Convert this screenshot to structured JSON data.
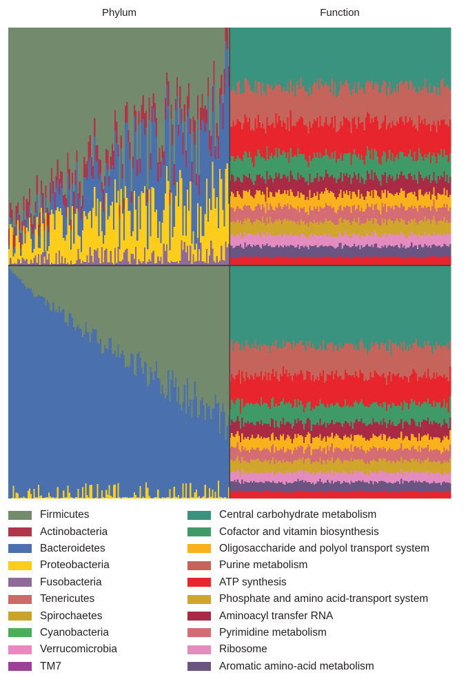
{
  "headers": {
    "phylum": "Phylum",
    "function": "Function"
  },
  "colors": {
    "Firmicutes": "#738a6c",
    "Actinobacteria": "#b0344a",
    "Bacteroidetes": "#4a70ad",
    "Proteobacteria": "#fccd1a",
    "Fusobacteria": "#8e6c9a",
    "Tenericutes": "#cc6a6a",
    "Spirochaetes": "#c9a42a",
    "Cyanobacteria": "#4cae5a",
    "Verrucomicrobia": "#ea88bf",
    "TM7": "#9e3f98",
    "Central carbohydrate metabolism": "#3a937f",
    "Cofactor and vitamin biosynthesis": "#3f9a67",
    "Oligosaccharide and polyol transport system": "#f9b21b",
    "Purine metabolism": "#c4645a",
    "ATP synthesis": "#e8242c",
    "Phosphate and amino acid-transport system": "#d0a52c",
    "Aminoacyl transfer RNA": "#a82a45",
    "Pyrimidine metabolism": "#d46d73",
    "Ribosome": "#e48cc0",
    "Aromatic amino-acid metabolism": "#6a5481"
  },
  "legend_phylum": [
    "Firmicutes",
    "Actinobacteria",
    "Bacteroidetes",
    "Proteobacteria",
    "Fusobacteria",
    "Tenericutes",
    "Spirochaetes",
    "Cyanobacteria",
    "Verrucomicrobia",
    "TM7"
  ],
  "legend_function": [
    "Central carbohydrate metabolism",
    "Cofactor and vitamin biosynthesis",
    "Oligosaccharide and polyol transport system",
    "Purine metabolism",
    "ATP synthesis",
    "Phosphate and amino acid-transport system",
    "Aminoacyl transfer RNA",
    "Pyrimidine metabolism",
    "Ribosome",
    "Aromatic amino-acid metabolism"
  ],
  "chart_data": [
    {
      "type": "area",
      "panel": "Phylum, upper group",
      "stacking": "100% stacked, bottom to top",
      "samples": 150,
      "sort": "ascending by Firmicutes deficit",
      "series": [
        {
          "name": "Fusobacteria",
          "start": 0.03,
          "end": 0.08
        },
        {
          "name": "Proteobacteria",
          "start": 0.1,
          "end": 0.25
        },
        {
          "name": "Bacteroidetes",
          "start": 0.02,
          "end": 0.4
        },
        {
          "name": "Actinobacteria",
          "start": 0.06,
          "end": 0.08
        },
        {
          "name": "Firmicutes",
          "start": 0.79,
          "end": 0.1
        }
      ]
    },
    {
      "type": "area",
      "panel": "Phylum, lower group",
      "stacking": "100% stacked, bottom to top",
      "samples": 150,
      "sort": "descending by Firmicutes",
      "series": [
        {
          "name": "Proteobacteria",
          "start": 0.03,
          "end": 0.04
        },
        {
          "name": "Bacteroidetes",
          "start": 0.97,
          "end": 0.3
        },
        {
          "name": "Firmicutes",
          "start": 0.0,
          "end": 0.66
        }
      ]
    },
    {
      "type": "area",
      "panel": "Function, both groups",
      "stacking": "100% stacked, bottom to top",
      "samples": 150,
      "series": [
        {
          "name": "ATP synthesis",
          "mean": 0.03
        },
        {
          "name": "Aromatic amino-acid metabolism",
          "mean": 0.04
        },
        {
          "name": "Ribosome",
          "mean": 0.04
        },
        {
          "name": "Phosphate and amino acid-transport system",
          "mean": 0.05
        },
        {
          "name": "Pyrimidine metabolism",
          "mean": 0.05
        },
        {
          "name": "Oligosaccharide and polyol transport system",
          "mean": 0.05
        },
        {
          "name": "Aminoacyl transfer RNA",
          "mean": 0.06
        },
        {
          "name": "Cofactor and vitamin biosynthesis",
          "mean": 0.08
        },
        {
          "name": "ATP synthesis",
          "mean": 0.12
        },
        {
          "name": "Purine metabolism",
          "mean": 0.13
        },
        {
          "name": "Central carbohydrate metabolism",
          "mean": 0.22
        }
      ]
    }
  ]
}
